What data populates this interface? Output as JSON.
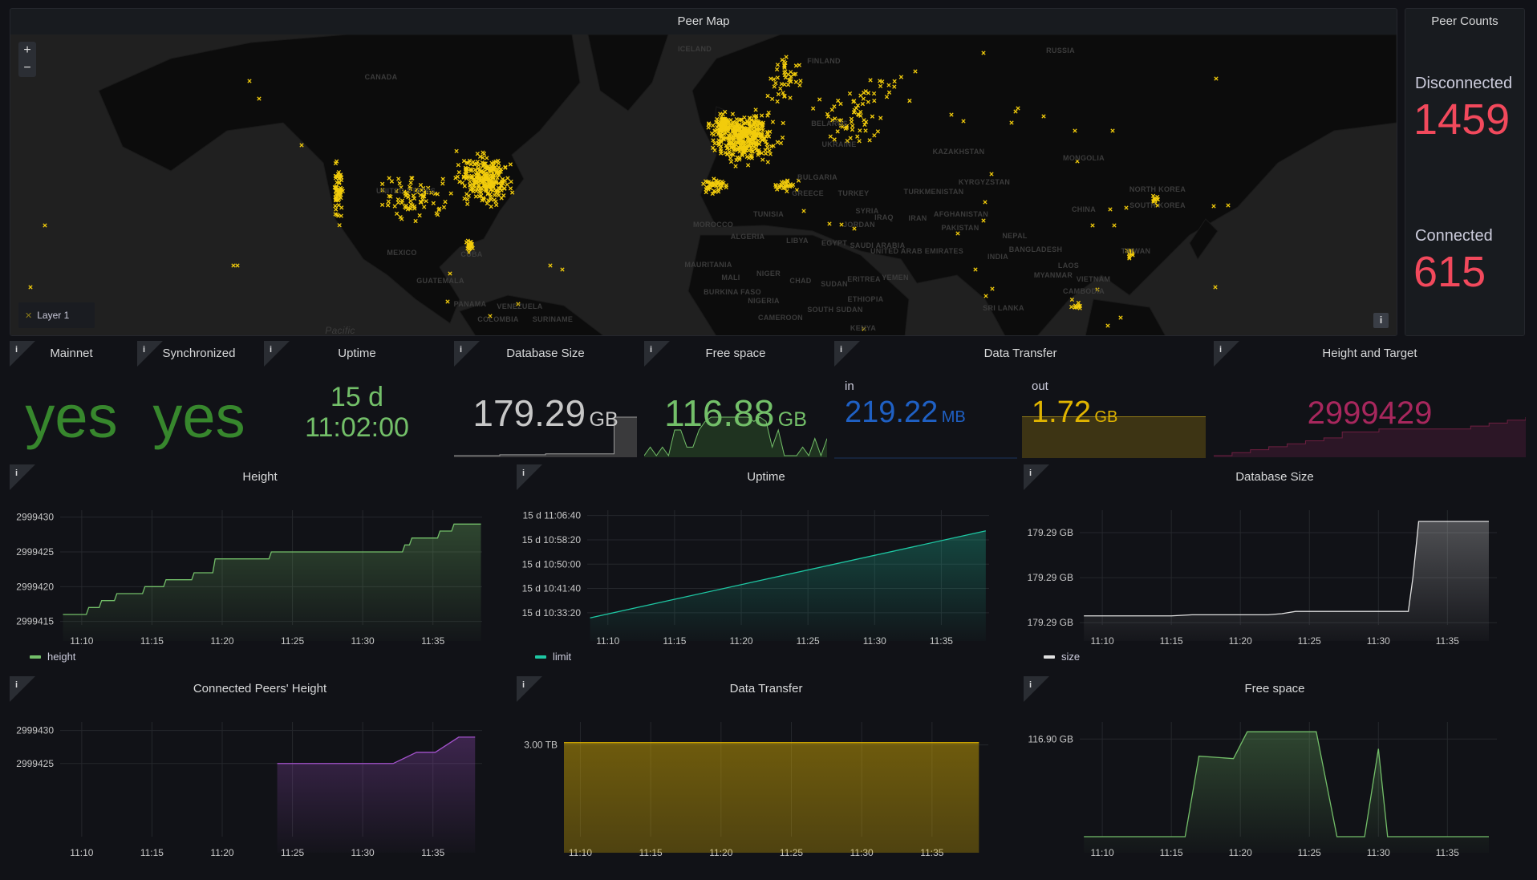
{
  "peer_map": {
    "title": "Peer Map",
    "zoom_in": "+",
    "zoom_out": "−",
    "legend_layer": "Layer 1",
    "marker_color": "#f2cc0c",
    "info_button": "i",
    "labels": [
      "CANADA",
      "UNITED STATES",
      "MEXICO",
      "CUBA",
      "GUATEMALA",
      "PANAMA",
      "VENEZUELA",
      "COLOMBIA",
      "SURINAME",
      "Pacific",
      "ICELAND",
      "RUSSIA",
      "FINLAND",
      "KAZAKHSTAN",
      "MONGOLIA",
      "KYRGYZSTAN",
      "TURKMENISTAN",
      "TURKEY",
      "CHINA",
      "AFGHANISTAN",
      "PAKISTAN",
      "IRAN",
      "IRAQ",
      "SYRIA",
      "TUNISIA",
      "MOROCCO",
      "ALGERIA",
      "LIBYA",
      "EGYPT",
      "SAUDI ARABIA",
      "NEPAL",
      "INDIA",
      "BANGLADESH",
      "NORTH KOREA",
      "SOUTH KOREA",
      "TAIWAN",
      "LAOS",
      "MYANMAR",
      "VIETNAM",
      "CAMBODIA",
      "MAURITANIA",
      "MALI",
      "NIGER",
      "CHAD",
      "SUDAN",
      "ERITREA",
      "YEMEN",
      "NIGERIA",
      "ETHIOPIA",
      "SOUTH SUDAN",
      "CAMEROON",
      "KENYA",
      "BURKINA FASO",
      "UNITED ARAB EMIRATES",
      "SRI LANKA",
      "UKRAINE",
      "BELARUS",
      "GREECE",
      "BULGARIA",
      "JORDAN"
    ]
  },
  "peer_counts": {
    "title": "Peer Counts",
    "disconnected_label": "Disconnected",
    "disconnected_value": "1459",
    "connected_label": "Connected",
    "connected_value": "615",
    "value_color": "#f2495c"
  },
  "stats": {
    "mainnet": {
      "title": "Mainnet",
      "value": "yes",
      "color": "#37872d"
    },
    "synchronized": {
      "title": "Synchronized",
      "value": "yes",
      "color": "#37872d"
    },
    "uptime": {
      "title": "Uptime",
      "days": "15 d",
      "time": "11:02:00",
      "color": "#73bf69"
    },
    "database_size": {
      "title": "Database Size",
      "value": "179.29",
      "unit": "GB",
      "color": "#c7c7c7",
      "sparkline": [
        179.29003,
        179.29003,
        179.29003,
        179.29003,
        179.29004,
        179.29004,
        179.29004,
        179.29004,
        179.29005,
        179.29005,
        179.29005,
        179.29005,
        179.29005,
        179.29005,
        179.29045,
        179.29045,
        179.29045
      ]
    },
    "free_space": {
      "title": "Free space",
      "value": "116.88",
      "unit": "GB",
      "color": "#73bf69",
      "sparkline": [
        116.86,
        116.87,
        116.86,
        116.87,
        116.86,
        116.89,
        116.89,
        116.87,
        116.87,
        116.89,
        116.9,
        116.905,
        116.905,
        116.905,
        116.905,
        116.905,
        116.905,
        116.905,
        116.9,
        116.905,
        116.9,
        116.87,
        116.89,
        116.86,
        116.86,
        116.86,
        116.87,
        116.86,
        116.88,
        116.86,
        116.88
      ]
    },
    "data_transfer": {
      "title": "Data Transfer",
      "in_label": "in",
      "in_value": "219.22",
      "in_unit": "MB",
      "in_color": "#1f60c4",
      "out_label": "out",
      "out_value": "1.72",
      "out_unit": "GB",
      "out_color": "#e0b400"
    },
    "height_target": {
      "title": "Height and Target",
      "value": "2999429",
      "color": "#a8275d",
      "sparkline": [
        2999416,
        2999417,
        2999418,
        2999419,
        2999420,
        2999421,
        2999422,
        2999424,
        2999424,
        2999425,
        2999425,
        2999425,
        2999425,
        2999425,
        2999426,
        2999427,
        2999428,
        2999429
      ]
    }
  },
  "info_icon": "i",
  "chart_data": [
    {
      "title": "Height",
      "type": "line",
      "step": true,
      "x_ticks": [
        "11:10",
        "11:15",
        "11:20",
        "11:25",
        "11:30",
        "11:35"
      ],
      "x_range": [
        "11:08:28",
        "11:38:30"
      ],
      "y_ticks": [
        {
          "value": 2999415,
          "label": "2999415"
        },
        {
          "value": 2999420,
          "label": "2999420"
        },
        {
          "value": 2999425,
          "label": "2999425"
        },
        {
          "value": 2999430,
          "label": "2999430"
        }
      ],
      "y_range": [
        2999414.5,
        2999431
      ],
      "legend": "bottom-left",
      "grid": true,
      "series": [
        {
          "name": "height",
          "color": "#73bf69",
          "points": [
            [
              "11:08:40",
              2999416
            ],
            [
              "11:10:30",
              2999417
            ],
            [
              "11:11:25",
              2999418
            ],
            [
              "11:12:30",
              2999419
            ],
            [
              "11:14:30",
              2999420
            ],
            [
              "11:16:00",
              2999421
            ],
            [
              "11:18:00",
              2999422
            ],
            [
              "11:19:30",
              2999424
            ],
            [
              "11:23:30",
              2999425
            ],
            [
              "11:33:00",
              2999426
            ],
            [
              "11:33:30",
              2999427
            ],
            [
              "11:35:30",
              2999428
            ],
            [
              "11:36:30",
              2999429
            ],
            [
              "11:38:25",
              2999429
            ]
          ]
        }
      ]
    },
    {
      "title": "Uptime",
      "type": "line",
      "x_ticks": [
        "11:10",
        "11:15",
        "11:20",
        "11:25",
        "11:30",
        "11:35"
      ],
      "x_range": [
        "11:08:27",
        "11:38:35"
      ],
      "y_ticks": [
        {
          "value": "15 d 10:33:20",
          "label": "15 d 10:33:20"
        },
        {
          "value": "15 d 10:41:40",
          "label": "15 d 10:41:40"
        },
        {
          "value": "15 d 10:50:00",
          "label": "15 d 10:50:00"
        },
        {
          "value": "15 d 10:58:20",
          "label": "15 d 10:58:20"
        },
        {
          "value": "15 d 11:06:40",
          "label": "15 d 11:06:40"
        }
      ],
      "y_range": [
        "15 d 10:29:10",
        "15 d 11:08:30"
      ],
      "legend": "bottom-left",
      "grid": true,
      "series": [
        {
          "name": "limit",
          "color": "#1ec7a3",
          "points": [
            [
              "11:08:40",
              "15 d 10:31:35"
            ],
            [
              "11:38:20",
              "15 d 11:01:25"
            ]
          ]
        }
      ]
    },
    {
      "title": "Database Size",
      "type": "line",
      "x_ticks": [
        "11:10",
        "11:15",
        "11:20",
        "11:25",
        "11:30",
        "11:35"
      ],
      "x_range": [
        "11:08:22",
        "11:38:35"
      ],
      "y_ticks": [
        {
          "value": 179.29,
          "label": "179.29 GB"
        },
        {
          "value": 179.2902,
          "label": "179.29 GB"
        },
        {
          "value": 179.2904,
          "label": "179.29 GB"
        }
      ],
      "y_range": [
        179.28999,
        179.2905
      ],
      "legend": "bottom-left",
      "grid": true,
      "series": [
        {
          "name": "size",
          "color": "#e0e0e0",
          "points": [
            [
              "11:08:40",
              179.29003
            ],
            [
              "11:15:00",
              179.29003
            ],
            [
              "11:16:30",
              179.290035
            ],
            [
              "11:22:00",
              179.290035
            ],
            [
              "11:23:00",
              179.29004
            ],
            [
              "11:24:00",
              179.29005
            ],
            [
              "11:32:10",
              179.29005
            ],
            [
              "11:32:30",
              179.2902
            ],
            [
              "11:32:55",
              179.29045
            ],
            [
              "11:38:00",
              179.29045
            ]
          ]
        }
      ]
    },
    {
      "title": "Connected Peers' Height",
      "type": "line",
      "x_ticks": [
        "11:10",
        "11:15",
        "11:20",
        "11:25",
        "11:30",
        "11:35"
      ],
      "x_range": [
        "11:08:28",
        "11:38:30"
      ],
      "y_ticks": [
        {
          "value": 2999425,
          "label": "2999425"
        },
        {
          "value": 2999430,
          "label": "2999430"
        }
      ],
      "y_range": [
        2999413.9,
        2999431.3
      ],
      "grid": true,
      "series": [
        {
          "name": "",
          "color": "#a352cc",
          "points": [
            [
              "11:23:55",
              2999425
            ],
            [
              "11:32:10",
              2999425
            ],
            [
              "11:33:50",
              2999426.7
            ],
            [
              "11:35:10",
              2999426.7
            ],
            [
              "11:36:50",
              2999429
            ],
            [
              "11:38:00",
              2999429
            ]
          ]
        }
      ]
    },
    {
      "title": "Data Transfer",
      "type": "area",
      "x_ticks": [
        "11:10",
        "11:15",
        "11:20",
        "11:25",
        "11:30",
        "11:35"
      ],
      "x_range": [
        "11:08:50",
        "11:39:00"
      ],
      "y_ticks": [
        {
          "value": 3.0,
          "label": "3.00 TB"
        }
      ],
      "y_range": [
        2.6,
        3.1
      ],
      "grid": true,
      "series": [
        {
          "name": "",
          "color": "#e0b400",
          "points": [
            [
              "11:08:50",
              3.01
            ],
            [
              "11:38:20",
              3.01
            ]
          ]
        }
      ]
    },
    {
      "title": "Free space",
      "type": "line",
      "x_ticks": [
        "11:10",
        "11:15",
        "11:20",
        "11:25",
        "11:30",
        "11:35"
      ],
      "x_range": [
        "11:08:22",
        "11:38:35"
      ],
      "y_ticks": [
        {
          "value": 116.9,
          "label": "116.90 GB"
        }
      ],
      "y_range": [
        116.86,
        116.907
      ],
      "grid": true,
      "series": [
        {
          "name": "",
          "color": "#73bf69",
          "points": [
            [
              "11:08:40",
              116.86
            ],
            [
              "11:16:00",
              116.86
            ],
            [
              "11:17:00",
              116.893
            ],
            [
              "11:19:30",
              116.892
            ],
            [
              "11:20:30",
              116.903
            ],
            [
              "11:25:30",
              116.903
            ],
            [
              "11:27:00",
              116.86
            ],
            [
              "11:29:00",
              116.86
            ],
            [
              "11:30:00",
              116.896
            ],
            [
              "11:30:40",
              116.86
            ],
            [
              "11:38:00",
              116.86
            ]
          ]
        }
      ]
    }
  ]
}
